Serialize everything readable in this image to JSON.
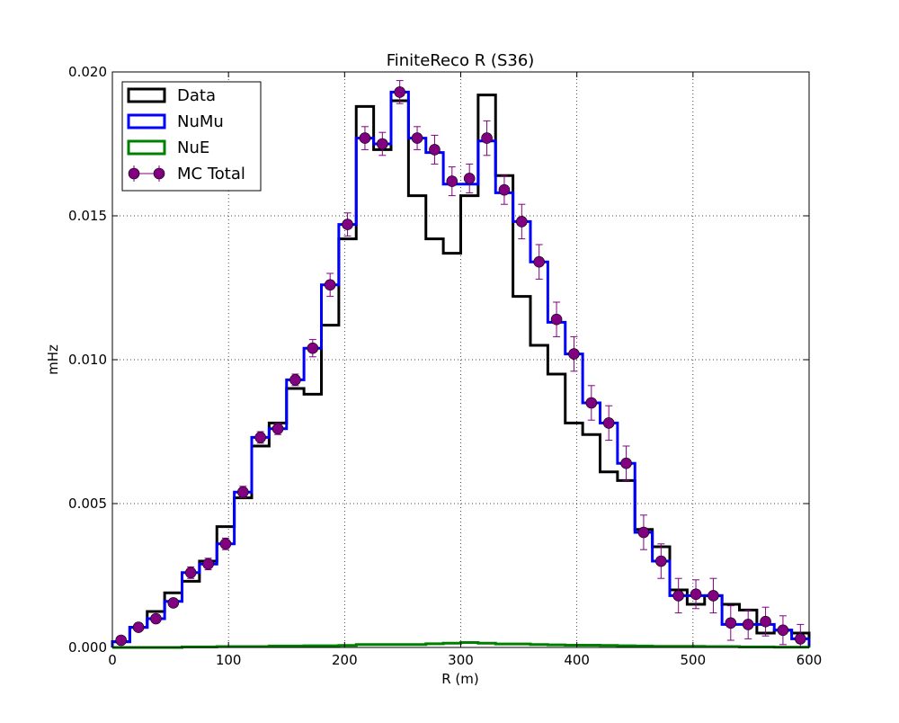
{
  "chart_data": {
    "type": "line",
    "title": "FiniteReco R (S36)",
    "xlabel": "R (m)",
    "ylabel": "mHz",
    "xlim": [
      0,
      600
    ],
    "ylim": [
      0,
      0.02
    ],
    "grid": true,
    "legend_position": "top-left",
    "x_ticks": [
      0,
      100,
      200,
      300,
      400,
      500,
      600
    ],
    "x_tick_labels": [
      "0",
      "100",
      "200",
      "300",
      "400",
      "500",
      "600"
    ],
    "y_ticks": [
      0,
      0.005,
      0.01,
      0.015,
      0.02
    ],
    "y_tick_labels": [
      "0.000",
      "0.005",
      "0.010",
      "0.015",
      "0.020"
    ],
    "bin_edges": [
      0,
      15,
      30,
      45,
      60,
      75,
      90,
      105,
      120,
      135,
      150,
      165,
      180,
      195,
      210,
      225,
      240,
      255,
      270,
      285,
      300,
      315,
      330,
      345,
      360,
      375,
      390,
      405,
      420,
      435,
      450,
      465,
      480,
      495,
      510,
      525,
      540,
      555,
      570,
      585,
      600
    ],
    "series": [
      {
        "name": "Data",
        "style": "step",
        "color": "#000000",
        "values": [
          0.0002,
          0.0007,
          0.00125,
          0.0019,
          0.0023,
          0.003,
          0.0042,
          0.0052,
          0.007,
          0.0078,
          0.009,
          0.0088,
          0.0112,
          0.0142,
          0.0188,
          0.0173,
          0.019,
          0.0157,
          0.0142,
          0.0137,
          0.0157,
          0.0192,
          0.0164,
          0.0122,
          0.0105,
          0.0095,
          0.0078,
          0.0074,
          0.0061,
          0.0058,
          0.0041,
          0.0035,
          0.002,
          0.0015,
          0.0018,
          0.0015,
          0.0013,
          0.0005,
          0.0006,
          0.0005
        ]
      },
      {
        "name": "NuMu",
        "style": "step",
        "color": "#0000ff",
        "values": [
          0.0002,
          0.0007,
          0.001,
          0.0016,
          0.0026,
          0.0029,
          0.0036,
          0.0054,
          0.0073,
          0.0076,
          0.0093,
          0.0104,
          0.0126,
          0.0147,
          0.0177,
          0.0175,
          0.0193,
          0.0177,
          0.0172,
          0.0161,
          0.0161,
          0.0176,
          0.0158,
          0.0148,
          0.0134,
          0.0113,
          0.0102,
          0.0085,
          0.0078,
          0.0064,
          0.004,
          0.003,
          0.0018,
          0.0018,
          0.0018,
          0.0008,
          0.0008,
          0.0008,
          0.0006,
          0.0003
        ]
      },
      {
        "name": "NuE",
        "style": "step",
        "color": "#008000",
        "values": [
          0.0,
          0.0,
          0.0,
          0.0,
          2e-05,
          2e-05,
          3e-05,
          3e-05,
          3e-05,
          5e-05,
          5e-05,
          6e-05,
          6e-05,
          7e-05,
          0.0001,
          0.0001,
          0.0001,
          0.0001,
          0.00013,
          0.00015,
          0.00017,
          0.00015,
          0.00012,
          0.00012,
          0.0001,
          9e-05,
          8e-05,
          8e-05,
          7e-05,
          6e-05,
          5e-05,
          4e-05,
          4e-05,
          4e-05,
          3e-05,
          3e-05,
          2e-05,
          2e-05,
          1e-05,
          1e-05
        ]
      },
      {
        "name": "MC Total",
        "style": "errorbar",
        "color": "#800080",
        "values": [
          0.00025,
          0.0007,
          0.001,
          0.00155,
          0.0026,
          0.0029,
          0.0036,
          0.0054,
          0.0073,
          0.0076,
          0.0093,
          0.0104,
          0.0126,
          0.0147,
          0.0177,
          0.0175,
          0.0193,
          0.0177,
          0.0173,
          0.0162,
          0.0163,
          0.0177,
          0.0159,
          0.0148,
          0.0134,
          0.0114,
          0.0102,
          0.0085,
          0.0078,
          0.0064,
          0.004,
          0.003,
          0.0018,
          0.00185,
          0.0018,
          0.00085,
          0.0008,
          0.0009,
          0.0006,
          0.0003
        ],
        "errors": [
          0.0001,
          0.0001,
          0.0001,
          0.0001,
          0.0002,
          0.0002,
          0.0002,
          0.0002,
          0.0002,
          0.0002,
          0.0002,
          0.0003,
          0.0004,
          0.0004,
          0.0004,
          0.0004,
          0.0004,
          0.0004,
          0.0005,
          0.0005,
          0.0005,
          0.0006,
          0.0005,
          0.0006,
          0.0006,
          0.0006,
          0.0006,
          0.0006,
          0.0006,
          0.0006,
          0.0006,
          0.0006,
          0.0006,
          0.0005,
          0.0006,
          0.0006,
          0.0005,
          0.0005,
          0.0005,
          0.0005
        ]
      }
    ]
  }
}
